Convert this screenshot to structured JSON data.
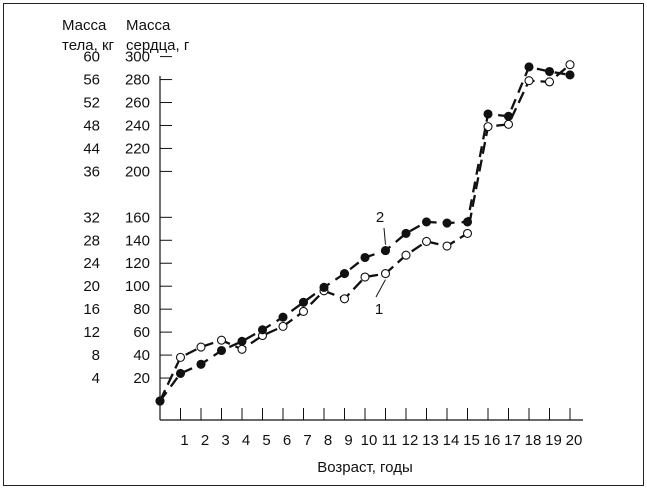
{
  "chart_data": {
    "type": "line",
    "xlabel": "Возраст, годы",
    "ylabel_left": [
      "Масса",
      "тела, кг"
    ],
    "ylabel_right": [
      "Масса",
      "сердца, г"
    ],
    "x_ticks": [
      1,
      2,
      3,
      4,
      5,
      6,
      7,
      8,
      9,
      10,
      11,
      12,
      13,
      14,
      15,
      16,
      17,
      18,
      19,
      20
    ],
    "y_ticks_body": [
      4,
      8,
      12,
      16,
      20,
      24,
      28,
      32,
      36,
      44,
      48,
      52,
      56,
      60
    ],
    "y_ticks_heart": [
      20,
      40,
      60,
      80,
      100,
      120,
      140,
      160,
      200,
      220,
      240,
      260,
      280,
      300
    ],
    "series": [
      {
        "name": "1",
        "label": "1",
        "marker": "open-circle",
        "color": "#111111",
        "x": [
          0,
          1,
          2,
          3,
          4,
          5,
          6,
          7,
          8,
          9,
          10,
          11,
          12,
          13,
          14,
          15,
          16,
          17,
          18,
          19,
          20
        ],
        "y": [
          0,
          38,
          47,
          53,
          45,
          57,
          65,
          78,
          96,
          89,
          108,
          111,
          127,
          139,
          135,
          146,
          239,
          241,
          279,
          278,
          293
        ]
      },
      {
        "name": "2",
        "label": "2",
        "marker": "filled-circle",
        "color": "#111111",
        "x": [
          0,
          1,
          2,
          3,
          4,
          5,
          6,
          7,
          8,
          9,
          10,
          11,
          12,
          13,
          14,
          15,
          16,
          17,
          18,
          19,
          20
        ],
        "y": [
          0,
          24,
          32,
          44,
          52,
          62,
          73,
          86,
          99,
          111,
          125,
          131,
          146,
          156,
          155,
          156,
          250,
          248,
          291,
          287,
          284
        ]
      }
    ]
  }
}
